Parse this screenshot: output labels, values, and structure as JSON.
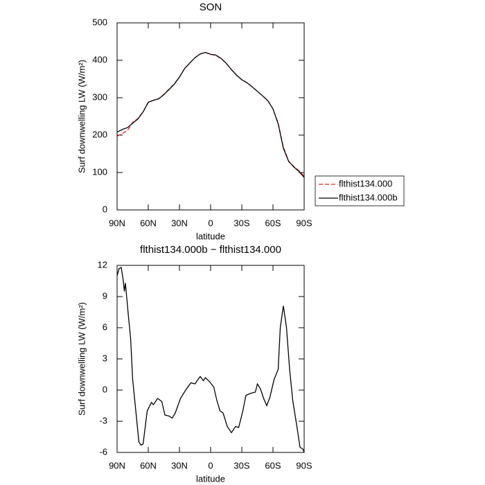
{
  "chart_data": [
    {
      "type": "line",
      "title": "SON",
      "xlabel": "latitude",
      "ylabel": "Surf downwelling LW (W/m²)",
      "x": [
        90,
        85,
        80,
        75,
        70,
        65,
        60,
        55,
        50,
        45,
        40,
        35,
        30,
        25,
        20,
        15,
        10,
        5,
        0,
        -5,
        -10,
        -15,
        -20,
        -25,
        -30,
        -35,
        -40,
        -45,
        -50,
        -55,
        -60,
        -65,
        -70,
        -75,
        -80,
        -85,
        -90
      ],
      "series": [
        {
          "name": "flthist134.000",
          "color": "#e8201e",
          "linestyle": "dashed",
          "values": [
            197,
            204,
            212,
            234,
            244,
            262,
            287,
            293,
            297,
            309,
            323,
            337,
            355,
            378,
            393,
            407,
            417,
            421,
            416,
            413,
            405,
            392,
            375,
            360,
            348,
            340,
            329,
            317,
            305,
            292,
            270,
            232,
            168,
            131,
            116,
            105,
            90
          ]
        },
        {
          "name": "flthist134.000b",
          "color": "#000000",
          "linestyle": "solid",
          "values": [
            208,
            215,
            220,
            232,
            243,
            262,
            288,
            293,
            297,
            308,
            322,
            336,
            355,
            378,
            393,
            407,
            417,
            421,
            416,
            414,
            405,
            392,
            375,
            360,
            348,
            340,
            329,
            317,
            305,
            292,
            270,
            230,
            165,
            130,
            115,
            103,
            87
          ]
        }
      ],
      "xlim": [
        90,
        -90
      ],
      "xticks": [
        {
          "value": 90,
          "label": "90N"
        },
        {
          "value": 60,
          "label": "60N"
        },
        {
          "value": 30,
          "label": "30N"
        },
        0,
        {
          "value": -30,
          "label": "30S"
        },
        {
          "value": -60,
          "label": "60S"
        },
        {
          "value": -90,
          "label": "90S"
        }
      ],
      "ylim": [
        0,
        500
      ],
      "yticks": [
        0,
        100,
        200,
        300,
        400,
        500
      ],
      "legend": "right"
    },
    {
      "type": "line",
      "title": "flthist134.000b − flthist134.000",
      "xlabel": "latitude",
      "ylabel": "Surf downwelling LW (W/m²)",
      "x": [
        90,
        88,
        86,
        84,
        83,
        82,
        79,
        77,
        75,
        72,
        69,
        67,
        65,
        61,
        57,
        55,
        51,
        47,
        44,
        40,
        37,
        34,
        29,
        24,
        19,
        15,
        13,
        10,
        7,
        5,
        1,
        -3,
        -6,
        -9,
        -12,
        -16,
        -20,
        -24,
        -27,
        -31,
        -34,
        -39,
        -43,
        -45,
        -48,
        -51,
        -54,
        -57,
        -61,
        -65,
        -67,
        -70,
        -73,
        -76,
        -79,
        -83,
        -86,
        -89,
        -90
      ],
      "series": [
        {
          "name": "flthist134.000b − flthist134.000",
          "color": "#000000",
          "linestyle": "solid",
          "values": [
            11,
            11.7,
            11.8,
            10.5,
            9.5,
            10.3,
            7,
            5,
            1,
            -2,
            -5,
            -5.3,
            -5.2,
            -2,
            -1.2,
            -1.4,
            -0.8,
            -1.1,
            -2.4,
            -2.5,
            -2.7,
            -2.2,
            -0.8,
            0,
            0.7,
            0.6,
            0.9,
            1.3,
            0.9,
            1.2,
            0.8,
            0.3,
            -1,
            -2,
            -2.2,
            -3.5,
            -4.1,
            -3.5,
            -3.6,
            -2,
            -0.5,
            -0.3,
            -0.2,
            0.6,
            0.1,
            -0.8,
            -1.5,
            -0.7,
            1,
            2,
            6,
            8.1,
            6,
            2,
            -1,
            -3.5,
            -5.5,
            -5.7,
            -6
          ]
        }
      ],
      "xlim": [
        90,
        -90
      ],
      "xticks": [
        {
          "value": 90,
          "label": "90N"
        },
        {
          "value": 60,
          "label": "60N"
        },
        {
          "value": 30,
          "label": "30N"
        },
        0,
        {
          "value": -30,
          "label": "30S"
        },
        {
          "value": -60,
          "label": "60S"
        },
        {
          "value": -90,
          "label": "90S"
        }
      ],
      "ylim": [
        -6,
        12
      ],
      "yticks": [
        -6,
        -3,
        0,
        3,
        6,
        9,
        12
      ]
    }
  ]
}
